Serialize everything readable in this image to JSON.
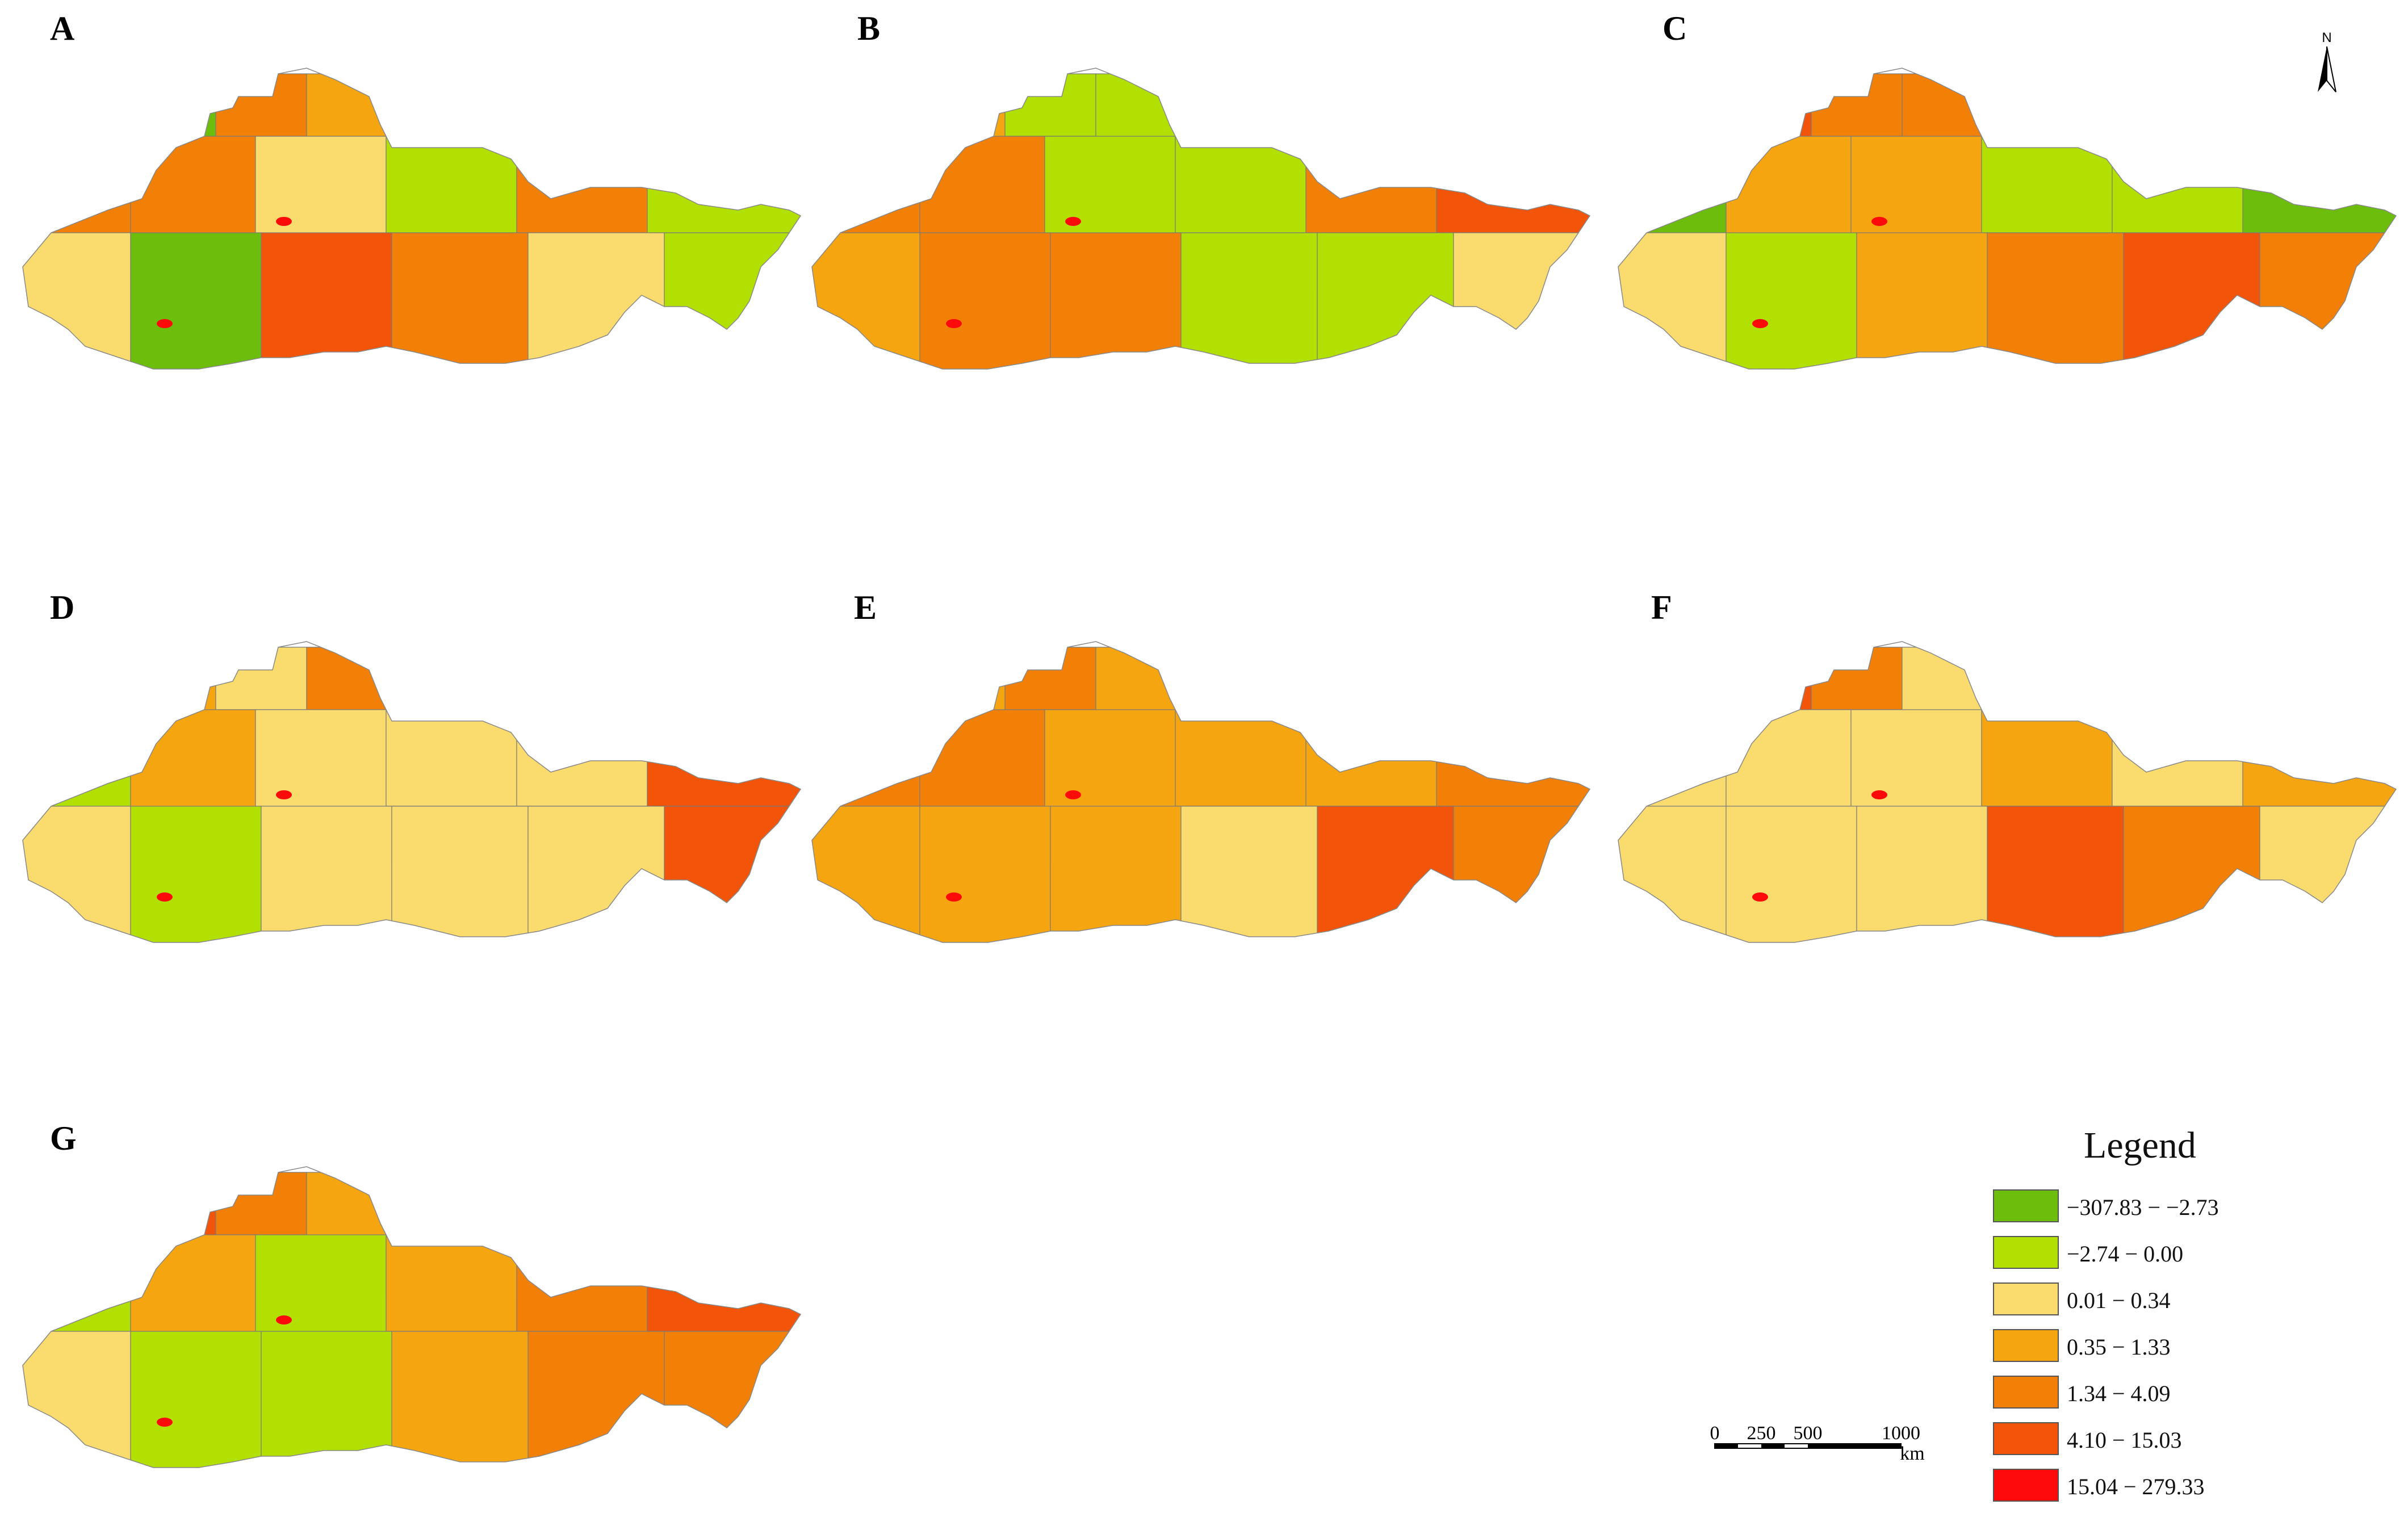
{
  "panels": [
    {
      "label": "A",
      "fills": [
        [
          "c1",
          "c5",
          "c4",
          "c2",
          "c5"
        ],
        [
          "c5",
          "c5",
          "c3",
          "c2",
          "c5",
          "c2"
        ],
        [
          "c3",
          "c1",
          "c6",
          "c5",
          "c3",
          "c2"
        ]
      ]
    },
    {
      "label": "B",
      "fills": [
        [
          "c4",
          "c2",
          "c2",
          "c2",
          "c5"
        ],
        [
          "c5",
          "c5",
          "c2",
          "c2",
          "c5",
          "c6"
        ],
        [
          "c4",
          "c5",
          "c5",
          "c2",
          "c2",
          "c3"
        ]
      ]
    },
    {
      "label": "C",
      "fills": [
        [
          "c6",
          "c5",
          "c5",
          "c2",
          "c2"
        ],
        [
          "c1",
          "c4",
          "c4",
          "c2",
          "c2",
          "c1"
        ],
        [
          "c3",
          "c2",
          "c4",
          "c5",
          "c6",
          "c5"
        ]
      ]
    },
    {
      "label": "D",
      "fills": [
        [
          "c4",
          "c3",
          "c5",
          "c3",
          "c3"
        ],
        [
          "c2",
          "c4",
          "c3",
          "c3",
          "c3",
          "c6"
        ],
        [
          "c3",
          "c2",
          "c3",
          "c3",
          "c3",
          "c6"
        ]
      ]
    },
    {
      "label": "E",
      "fills": [
        [
          "c4",
          "c5",
          "c4",
          "c4",
          "c4"
        ],
        [
          "c5",
          "c5",
          "c4",
          "c4",
          "c4",
          "c5"
        ],
        [
          "c4",
          "c4",
          "c4",
          "c3",
          "c6",
          "c5"
        ]
      ]
    },
    {
      "label": "F",
      "fills": [
        [
          "c6",
          "c5",
          "c3",
          "c3",
          "c3"
        ],
        [
          "c3",
          "c3",
          "c3",
          "c4",
          "c3",
          "c4"
        ],
        [
          "c3",
          "c3",
          "c3",
          "c6",
          "c5",
          "c3"
        ]
      ]
    },
    {
      "label": "G",
      "fills": [
        [
          "c6",
          "c5",
          "c4",
          "c3",
          "c5"
        ],
        [
          "c2",
          "c4",
          "c2",
          "c4",
          "c5",
          "c6"
        ],
        [
          "c3",
          "c2",
          "c2",
          "c4",
          "c5",
          "c5"
        ]
      ]
    }
  ],
  "legend": {
    "title": "Legend",
    "classes": [
      {
        "key": "c1",
        "color": "#6dbe0c",
        "range": "−307.83 − −2.73"
      },
      {
        "key": "c2",
        "color": "#b2e003",
        "range": "−2.74 − 0.00"
      },
      {
        "key": "c3",
        "color": "#fadb6e",
        "range": "0.01 − 0.34"
      },
      {
        "key": "c4",
        "color": "#f5a50f",
        "range": "0.35 − 1.33"
      },
      {
        "key": "c5",
        "color": "#f28007",
        "range": "1.34 − 4.09"
      },
      {
        "key": "c6",
        "color": "#f25509",
        "range": "4.10 − 15.03"
      },
      {
        "key": "c7",
        "color": "#ff0a0a",
        "range": "15.04 − 279.33"
      }
    ]
  },
  "scale_bar": {
    "ticks": [
      "0",
      "250",
      "500",
      "1000"
    ],
    "unit": "km"
  },
  "north_arrow": {
    "label": "N"
  }
}
